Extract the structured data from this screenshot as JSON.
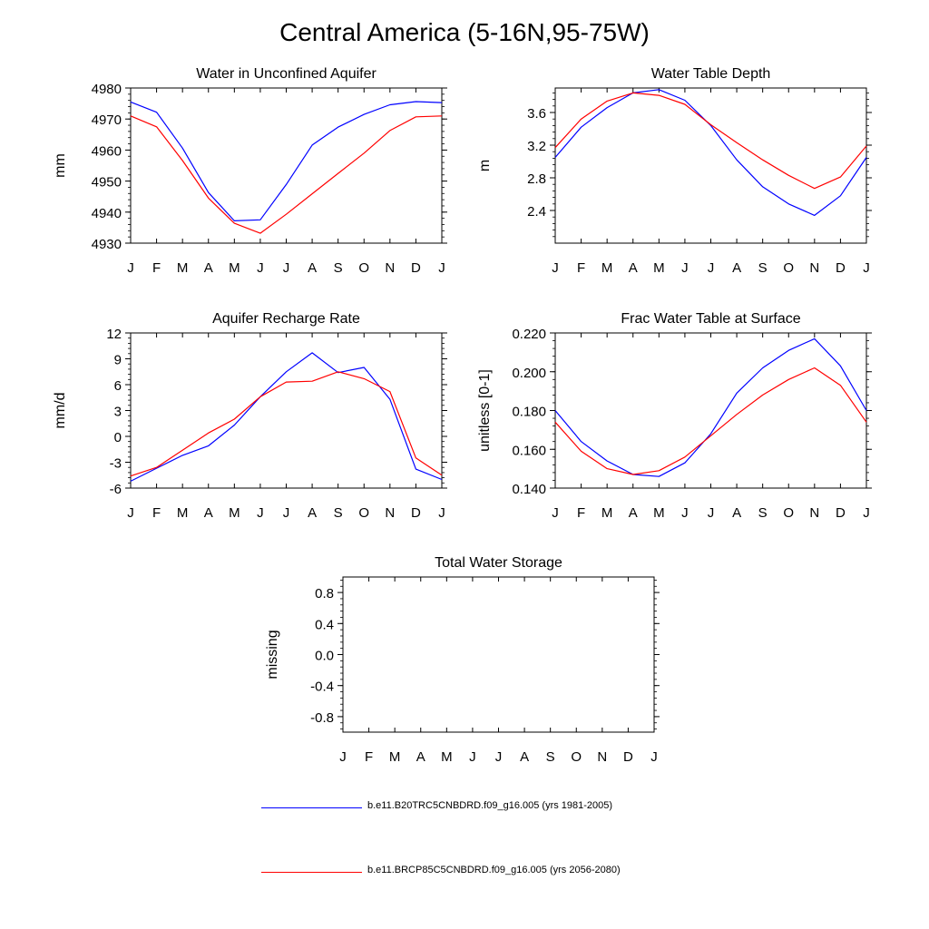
{
  "figure": {
    "title": "Central America (5-16N,95-75W)"
  },
  "months": [
    "J",
    "F",
    "M",
    "A",
    "M",
    "J",
    "J",
    "A",
    "S",
    "O",
    "N",
    "D",
    "J"
  ],
  "series_meta": [
    {
      "name": "b.e11.B20TRC5CNBDRD.f09_g16.005 (yrs 1981-2005)",
      "color": "#0000ff"
    },
    {
      "name": "b.e11.BRCP85C5CNBDRD.f09_g16.005 (yrs 2056-2080)",
      "color": "#ff0000"
    }
  ],
  "legend": {
    "entries": [
      {
        "label": "b.e11.B20TRC5CNBDRD.f09_g16.005 (yrs 1981-2005)",
        "color": "#0000ff"
      },
      {
        "label": "b.e11.BRCP85C5CNBDRD.f09_g16.005 (yrs 2056-2080)",
        "color": "#ff0000"
      }
    ]
  },
  "chart_data": [
    {
      "id": "water-in-unconfined-aquifer",
      "type": "line",
      "title": "Water in Unconfined Aquifer",
      "xlabel": "",
      "ylabel": "mm",
      "categories": [
        "J",
        "F",
        "M",
        "A",
        "M",
        "J",
        "J",
        "A",
        "S",
        "O",
        "N",
        "D",
        "J"
      ],
      "ylim": [
        4930,
        4980
      ],
      "yticks": [
        4930,
        4940,
        4950,
        4960,
        4970,
        4980
      ],
      "ytick_labels": [
        "4930",
        "4940",
        "4950",
        "4960",
        "4970",
        "4980"
      ],
      "series": [
        {
          "name": "b.e11.B20TRC5CNBDRD.f09_g16.005 (yrs 1981-2005)",
          "values": [
            4975.5,
            4972.2,
            4960.6,
            4946.3,
            4937.2,
            4937.5,
            4948.9,
            4961.6,
            4967.4,
            4971.5,
            4974.6,
            4975.6,
            4975.3
          ]
        },
        {
          "name": "b.e11.BRCP85C5CNBDRD.f09_g16.005 (yrs 2056-2080)",
          "values": [
            4971.0,
            4967.5,
            4956.6,
            4944.5,
            4936.4,
            4933.2,
            4939.3,
            4945.9,
            4952.5,
            4959.0,
            4966.3,
            4970.7,
            4971.0
          ]
        }
      ]
    },
    {
      "id": "water-table-depth",
      "type": "line",
      "title": "Water Table Depth",
      "xlabel": "",
      "ylabel": "m",
      "categories": [
        "J",
        "F",
        "M",
        "A",
        "M",
        "J",
        "J",
        "A",
        "S",
        "O",
        "N",
        "D",
        "J"
      ],
      "ylim": [
        2.0,
        3.9
      ],
      "yticks": [
        2.4,
        2.8,
        3.2,
        3.6
      ],
      "ytick_labels": [
        "2.4",
        "2.8",
        "3.2",
        "3.6"
      ],
      "series": [
        {
          "name": "b.e11.B20TRC5CNBDRD.f09_g16.005 (yrs 1981-2005)",
          "values": [
            3.05,
            3.42,
            3.66,
            3.84,
            3.88,
            3.75,
            3.44,
            3.02,
            2.69,
            2.48,
            2.34,
            2.58,
            3.05
          ]
        },
        {
          "name": "b.e11.BRCP85C5CNBDRD.f09_g16.005 (yrs 2056-2080)",
          "values": [
            3.17,
            3.52,
            3.74,
            3.84,
            3.81,
            3.7,
            3.45,
            3.23,
            3.02,
            2.83,
            2.67,
            2.81,
            3.19
          ]
        }
      ]
    },
    {
      "id": "aquifer-recharge-rate",
      "type": "line",
      "title": "Aquifer Recharge Rate",
      "xlabel": "",
      "ylabel": "mm/d",
      "categories": [
        "J",
        "F",
        "M",
        "A",
        "M",
        "J",
        "J",
        "A",
        "S",
        "O",
        "N",
        "D",
        "J"
      ],
      "ylim": [
        -6,
        12
      ],
      "yticks": [
        -6,
        -3,
        0,
        3,
        6,
        9,
        12
      ],
      "ytick_labels": [
        "-6",
        "-3",
        "0",
        "3",
        "6",
        "9",
        "12"
      ],
      "series": [
        {
          "name": "b.e11.B20TRC5CNBDRD.f09_g16.005 (yrs 1981-2005)",
          "values": [
            -5.2,
            -3.7,
            -2.2,
            -1.1,
            1.3,
            4.6,
            7.5,
            9.7,
            7.4,
            8.0,
            4.3,
            -3.8,
            -5.0
          ]
        },
        {
          "name": "b.e11.BRCP85C5CNBDRD.f09_g16.005 (yrs 2056-2080)",
          "values": [
            -4.6,
            -3.6,
            -1.6,
            0.4,
            2.0,
            4.6,
            6.3,
            6.4,
            7.5,
            6.7,
            5.2,
            -2.5,
            -4.5
          ]
        }
      ]
    },
    {
      "id": "frac-water-table-at-surface",
      "type": "line",
      "title": "Frac Water Table at Surface",
      "xlabel": "",
      "ylabel": "unitless [0-1]",
      "categories": [
        "J",
        "F",
        "M",
        "A",
        "M",
        "J",
        "J",
        "A",
        "S",
        "O",
        "N",
        "D",
        "J"
      ],
      "ylim": [
        0.14,
        0.22
      ],
      "yticks": [
        0.14,
        0.16,
        0.18,
        0.2,
        0.22
      ],
      "ytick_labels": [
        "0.140",
        "0.160",
        "0.180",
        "0.200",
        "0.220"
      ],
      "series": [
        {
          "name": "b.e11.B20TRC5CNBDRD.f09_g16.005 (yrs 1981-2005)",
          "values": [
            0.18,
            0.164,
            0.154,
            0.147,
            0.146,
            0.153,
            0.168,
            0.189,
            0.202,
            0.211,
            0.217,
            0.203,
            0.18
          ]
        },
        {
          "name": "b.e11.BRCP85C5CNBDRD.f09_g16.005 (yrs 2056-2080)",
          "values": [
            0.174,
            0.159,
            0.15,
            0.147,
            0.149,
            0.156,
            0.167,
            0.178,
            0.188,
            0.196,
            0.202,
            0.193,
            0.174
          ]
        }
      ]
    },
    {
      "id": "total-water-storage",
      "type": "line",
      "title": "Total Water Storage",
      "xlabel": "",
      "ylabel": "missing",
      "categories": [
        "J",
        "F",
        "M",
        "A",
        "M",
        "J",
        "J",
        "A",
        "S",
        "O",
        "N",
        "D",
        "J"
      ],
      "ylim": [
        -1.0,
        1.0
      ],
      "yticks": [
        -0.8,
        -0.4,
        0.0,
        0.4,
        0.8
      ],
      "ytick_labels": [
        "-0.8",
        "-0.4",
        "0.0",
        "0.4",
        "0.8"
      ],
      "series": []
    }
  ]
}
